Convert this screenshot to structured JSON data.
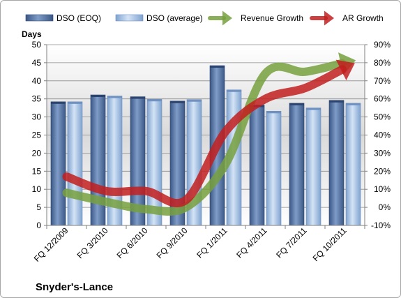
{
  "chart_data": {
    "type": "bar",
    "title": "",
    "company_label": "Snyder's-Lance",
    "ylabel": "Days",
    "categories": [
      "FQ 12/2009",
      "FQ 3/2010",
      "FQ 6/2010",
      "FQ 9/2010",
      "FQ 1/2011",
      "FQ 4/2011",
      "FQ 7/2011",
      "FQ 10/2011"
    ],
    "ylim": [
      0,
      50
    ],
    "y2lim": [
      -10,
      90
    ],
    "y_ticks": [
      "0",
      "5",
      "10",
      "15",
      "20",
      "25",
      "30",
      "35",
      "40",
      "45",
      "50"
    ],
    "y2_ticks": [
      "-10%",
      "0%",
      "10%",
      "20%",
      "30%",
      "40%",
      "50%",
      "60%",
      "70%",
      "80%",
      "90%"
    ],
    "grid": true,
    "legend_position": "top",
    "series": [
      {
        "name": "DSO (EOQ)",
        "type": "bar",
        "axis": "left",
        "color": "#4f6d9b",
        "values": [
          34.2,
          36.1,
          35.6,
          34.4,
          44.2,
          33.3,
          33.8,
          34.6
        ]
      },
      {
        "name": "DSO (average)",
        "type": "bar",
        "axis": "left",
        "color": "#a9c4e6",
        "values": [
          34.2,
          35.8,
          34.9,
          34.8,
          37.5,
          31.6,
          32.5,
          33.8
        ]
      },
      {
        "name": "Revenue Growth",
        "type": "line",
        "axis": "right",
        "unit": "%",
        "color": "#77a03e",
        "values": [
          8,
          3,
          -1,
          0,
          24,
          74,
          75,
          80
        ]
      },
      {
        "name": "AR Growth",
        "type": "line",
        "axis": "right",
        "unit": "%",
        "color": "#c21f1f",
        "values": [
          17,
          9,
          9,
          4,
          42,
          60,
          66,
          77
        ]
      }
    ]
  }
}
